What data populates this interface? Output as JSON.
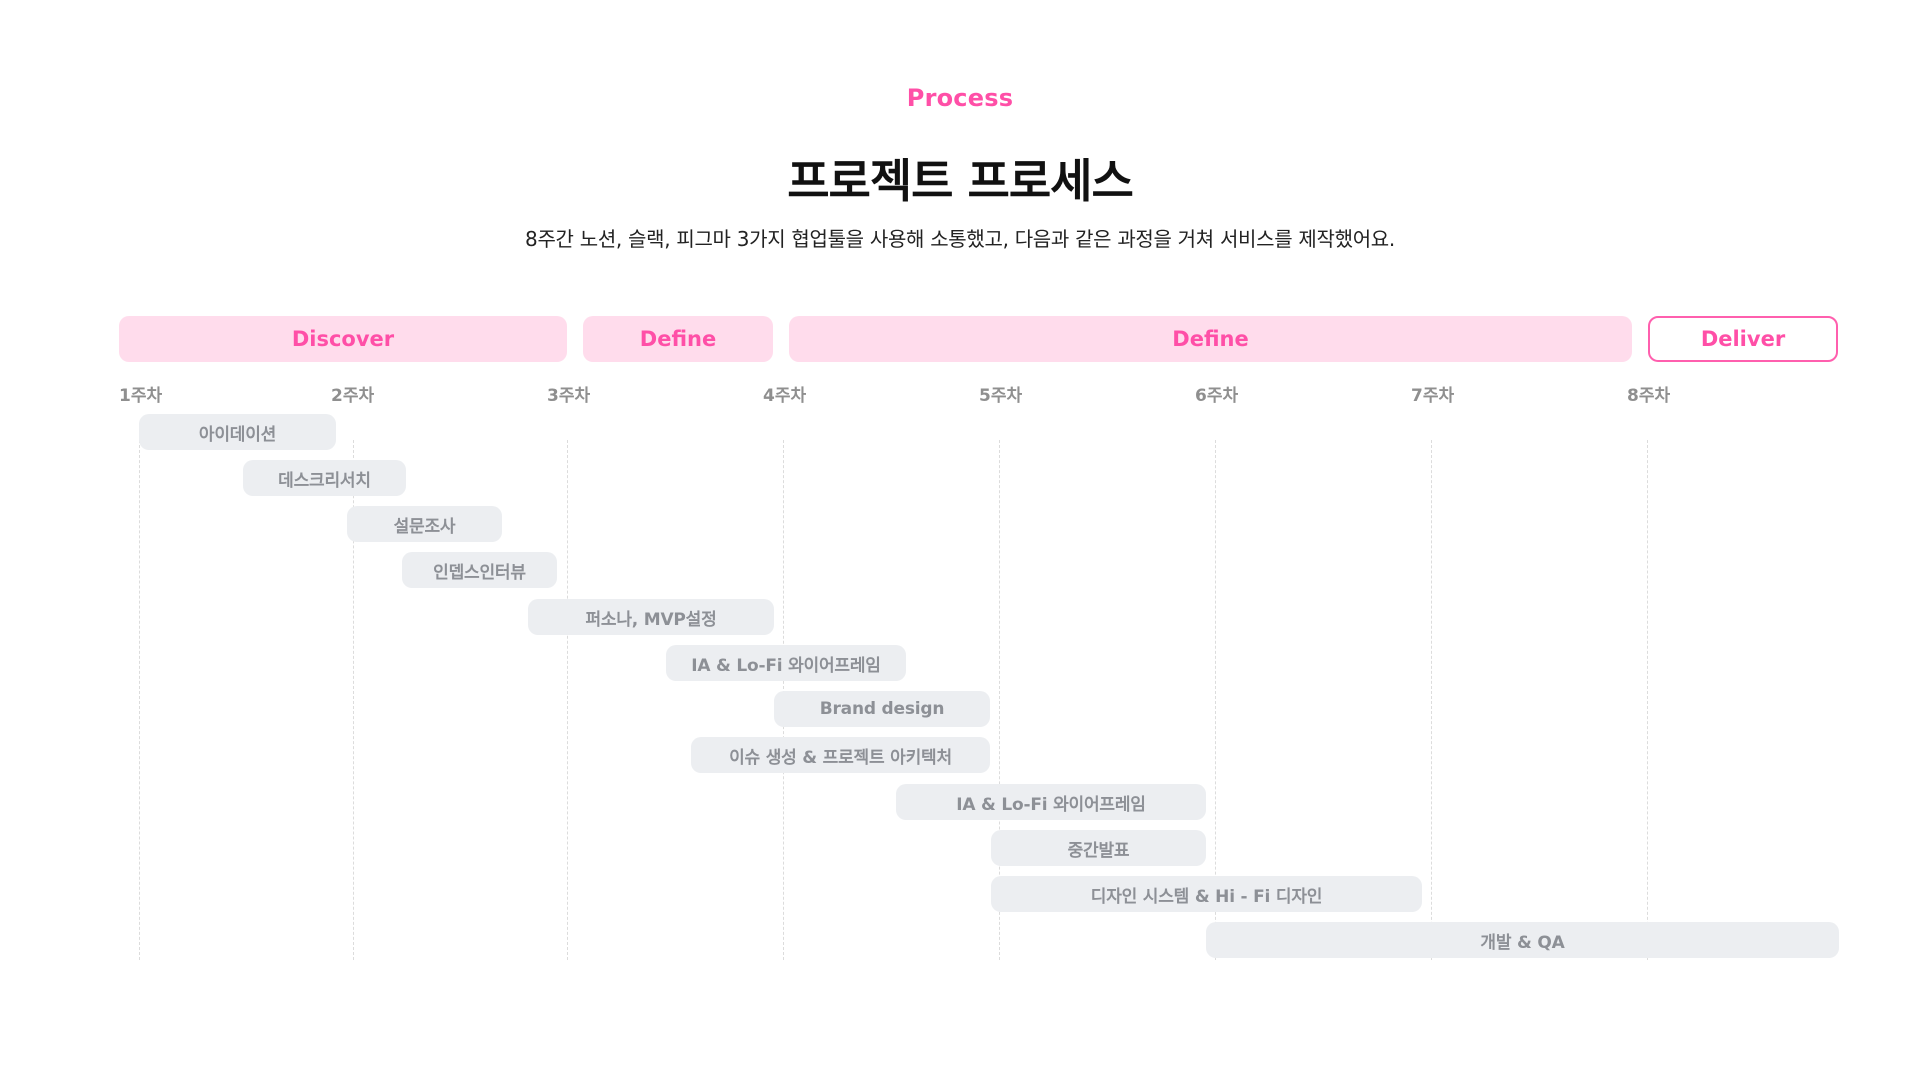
{
  "header": {
    "eyebrow": "Process",
    "title": "프로젝트 프로세스",
    "subtitle": "8주간 노션, 슬랙, 피그마 3가지 협업툴을 사용해 소통했고, 다음과 같은 과정을 거쳐 서비스를 제작했어요."
  },
  "colors": {
    "accent": "#ff4fa7",
    "phase_fill": "#ffdcec",
    "task_fill": "#eceef1",
    "task_text": "#8d9096"
  },
  "phases": [
    {
      "label": "Discover"
    },
    {
      "label": "Define"
    },
    {
      "label": "Define"
    },
    {
      "label": "Deliver"
    }
  ],
  "weeks": [
    {
      "label": "1주차"
    },
    {
      "label": "2주차"
    },
    {
      "label": "3주차"
    },
    {
      "label": "4주차"
    },
    {
      "label": "5주차"
    },
    {
      "label": "6주차"
    },
    {
      "label": "7주차"
    },
    {
      "label": "8주차"
    }
  ],
  "tasks": [
    {
      "label": "아이데이션"
    },
    {
      "label": "데스크리서치"
    },
    {
      "label": "설문조사"
    },
    {
      "label": "인뎁스인터뷰"
    },
    {
      "label": "퍼소나, MVP설정"
    },
    {
      "label": "IA & Lo-Fi 와이어프레임"
    },
    {
      "label": "Brand design"
    },
    {
      "label": "이슈 생성 & 프로젝트 아키텍처"
    },
    {
      "label": "IA & Lo-Fi 와이어프레임"
    },
    {
      "label": "중간발표"
    },
    {
      "label": "디자인 시스템 & Hi - Fi 디자인"
    },
    {
      "label": "개발 & QA"
    }
  ]
}
